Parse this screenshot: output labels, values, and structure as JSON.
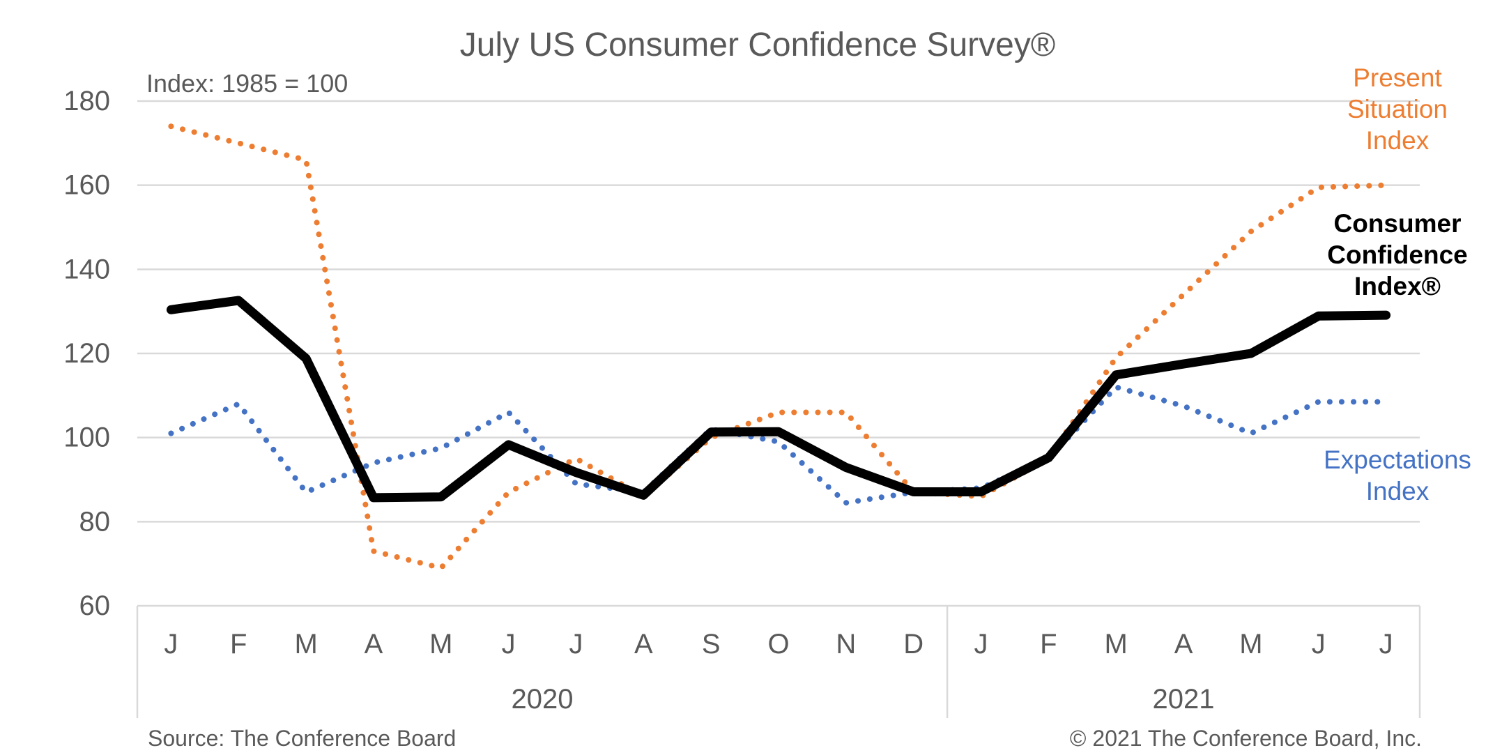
{
  "chart_data": {
    "type": "line",
    "title": "July US Consumer Confidence Survey®",
    "subtitle": "Index: 1985 = 100",
    "categories": [
      "J",
      "F",
      "M",
      "A",
      "M",
      "J",
      "J",
      "A",
      "S",
      "O",
      "N",
      "D",
      "J",
      "F",
      "M",
      "A",
      "M",
      "J",
      "J"
    ],
    "year_groups": [
      {
        "label": "2020",
        "start": 0,
        "end": 11
      },
      {
        "label": "2021",
        "start": 12,
        "end": 18
      }
    ],
    "ylim": [
      60,
      180
    ],
    "yticks": [
      60,
      80,
      100,
      120,
      140,
      160,
      180
    ],
    "grid": true,
    "series": [
      {
        "name": "Present Situation Index",
        "label_lines": [
          "Present",
          "Situation",
          "Index"
        ],
        "color": "#ED7D31",
        "style": "dotted",
        "values": [
          174,
          170,
          166,
          73,
          69,
          87,
          95,
          86,
          100,
          106,
          106,
          87,
          86,
          95,
          119,
          134,
          149,
          159.5,
          160
        ]
      },
      {
        "name": "Expectations Index",
        "label_lines": [
          "Expectations",
          "Index"
        ],
        "color": "#4472C4",
        "style": "dotted",
        "values": [
          101,
          108,
          87,
          94,
          97.5,
          106,
          89,
          87,
          102,
          99,
          84.5,
          87,
          88,
          95,
          112,
          107.5,
          101,
          108.5,
          108.5
        ]
      },
      {
        "name": "Consumer Confidence Index®",
        "label_lines": [
          "Consumer",
          "Confidence",
          "Index®"
        ],
        "color": "#000000",
        "style": "solid",
        "values": [
          130.4,
          132.6,
          118.8,
          85.7,
          85.9,
          98.3,
          91.7,
          86.3,
          101.3,
          101.4,
          92.9,
          87.1,
          87.1,
          95.2,
          114.9,
          117.5,
          120.0,
          128.9,
          129.1
        ]
      }
    ],
    "source": "Source: The Conference Board",
    "copyright": "© 2021 The Conference Board, Inc."
  }
}
